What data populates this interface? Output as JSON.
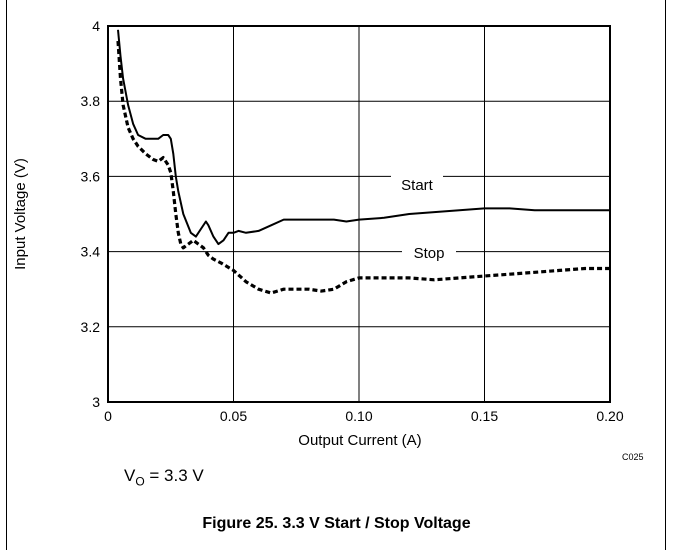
{
  "chart_data": {
    "type": "line",
    "xlabel": "Output Current (A)",
    "ylabel": "Input Voltage (V)",
    "xlim": [
      0,
      0.2
    ],
    "ylim": [
      3,
      4
    ],
    "x_ticks": [
      0,
      0.05,
      0.1,
      0.15,
      0.2
    ],
    "x_tick_labels": [
      "0",
      "0.05",
      "0.10",
      "0.15",
      "0.20"
    ],
    "y_ticks": [
      3,
      3.2,
      3.4,
      3.6,
      3.8,
      4
    ],
    "y_tick_labels": [
      "3",
      "3.2",
      "3.4",
      "3.6",
      "3.8",
      "4"
    ],
    "grid": true,
    "series": [
      {
        "name": "Start",
        "style": "solid",
        "color": "#000000",
        "x": [
          0.004,
          0.005,
          0.006,
          0.008,
          0.01,
          0.012,
          0.015,
          0.018,
          0.02,
          0.022,
          0.024,
          0.025,
          0.026,
          0.027,
          0.028,
          0.03,
          0.033,
          0.035,
          0.037,
          0.039,
          0.04,
          0.042,
          0.044,
          0.046,
          0.048,
          0.05,
          0.052,
          0.055,
          0.06,
          0.065,
          0.07,
          0.08,
          0.09,
          0.095,
          0.1,
          0.11,
          0.12,
          0.13,
          0.14,
          0.15,
          0.16,
          0.17,
          0.18,
          0.19,
          0.2
        ],
        "y": [
          3.99,
          3.92,
          3.86,
          3.79,
          3.74,
          3.71,
          3.7,
          3.7,
          3.7,
          3.71,
          3.71,
          3.7,
          3.66,
          3.6,
          3.56,
          3.5,
          3.45,
          3.44,
          3.46,
          3.48,
          3.47,
          3.44,
          3.42,
          3.43,
          3.45,
          3.45,
          3.455,
          3.45,
          3.455,
          3.47,
          3.485,
          3.485,
          3.485,
          3.48,
          3.485,
          3.49,
          3.5,
          3.505,
          3.51,
          3.515,
          3.515,
          3.51,
          3.51,
          3.51,
          3.51
        ]
      },
      {
        "name": "Stop",
        "style": "dashed",
        "color": "#000000",
        "x": [
          0.004,
          0.005,
          0.006,
          0.008,
          0.01,
          0.012,
          0.015,
          0.018,
          0.02,
          0.022,
          0.024,
          0.025,
          0.026,
          0.027,
          0.028,
          0.029,
          0.03,
          0.032,
          0.034,
          0.036,
          0.038,
          0.04,
          0.042,
          0.045,
          0.05,
          0.055,
          0.06,
          0.065,
          0.07,
          0.08,
          0.085,
          0.09,
          0.095,
          0.1,
          0.11,
          0.12,
          0.13,
          0.14,
          0.15,
          0.16,
          0.17,
          0.18,
          0.19,
          0.2
        ],
        "y": [
          3.96,
          3.86,
          3.79,
          3.73,
          3.7,
          3.68,
          3.66,
          3.645,
          3.64,
          3.65,
          3.63,
          3.61,
          3.56,
          3.5,
          3.45,
          3.42,
          3.41,
          3.42,
          3.43,
          3.42,
          3.41,
          3.39,
          3.38,
          3.37,
          3.35,
          3.32,
          3.3,
          3.29,
          3.3,
          3.3,
          3.295,
          3.3,
          3.32,
          3.33,
          3.33,
          3.33,
          3.325,
          3.33,
          3.335,
          3.34,
          3.345,
          3.35,
          3.355,
          3.355
        ]
      }
    ],
    "annotations": [
      "Start",
      "Stop"
    ],
    "figure_code": "C025"
  },
  "conditions": {
    "vo_prefix": "V",
    "vo_subscript": "O",
    "vo_value": " = 3.3 V"
  },
  "caption": "Figure 25. 3.3 V Start / Stop Voltage"
}
